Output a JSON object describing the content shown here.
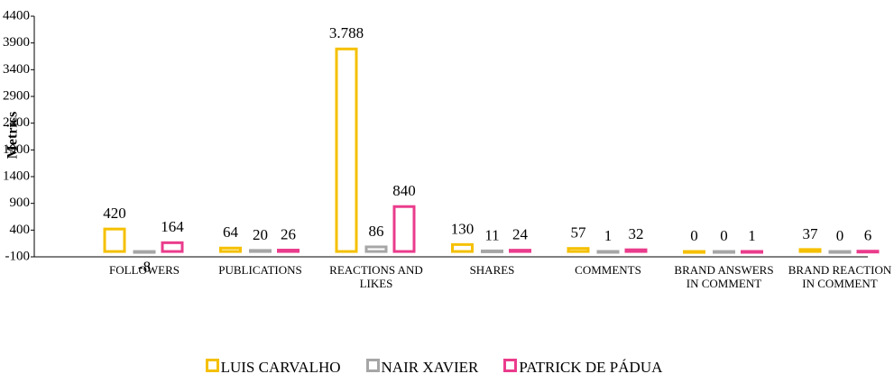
{
  "chart_data": {
    "type": "bar",
    "y_label": "Metrics",
    "categories": [
      "FOLLOWERS",
      "PUBLICATIONS",
      "REACTIONS AND LIKES",
      "SHARES",
      "COMMENTS",
      "BRAND ANSWERS IN COMMENT",
      "BRAND REACTION IN COMMENT"
    ],
    "series": [
      {
        "name": "LUIS CARVALHO",
        "color": "#f5c000",
        "values": [
          420,
          64,
          3788,
          130,
          57,
          0,
          37
        ],
        "value_labels": [
          "420",
          "64",
          "3.788",
          "130",
          "57",
          "0",
          "37"
        ]
      },
      {
        "name": "NAIR XAVIER",
        "color": "#a6a6a6",
        "values": [
          -8,
          20,
          86,
          11,
          1,
          0,
          0
        ]
      },
      {
        "name": "PATRICK DE PÁDUA",
        "color": "#ea3c8c",
        "values": [
          164,
          26,
          840,
          24,
          32,
          1,
          6
        ]
      }
    ],
    "ylim": [
      -100,
      4400
    ],
    "yticks": [
      -100,
      400,
      900,
      1400,
      1900,
      2400,
      2900,
      3400,
      3900,
      4400
    ],
    "grid": false,
    "legend": "bottom"
  }
}
